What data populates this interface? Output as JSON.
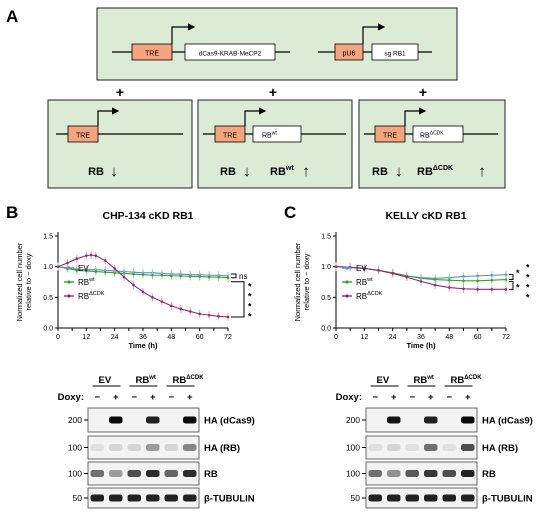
{
  "colors": {
    "panel_bg": "#dcebd6",
    "panel_border": "#222222",
    "tre_box": "#f4a57f",
    "ev": "#5b8fd6",
    "rb_wt": "#3aa032",
    "rb_dcdk": "#8e2d6e",
    "ev_err": "#9ec8ee",
    "rb_wt_err": "#9ad48e",
    "rb_dcdk_err": "#e29ad2"
  },
  "panel_a": {
    "letter": "A",
    "top": {
      "tre": "TRE",
      "dcas": "dCas9-KRAB-MeCP2",
      "pu6": "pU6",
      "sg": "sg RB1"
    },
    "plus": "+",
    "left": {
      "tre": "TRE",
      "rb": "RB",
      "arrow": "↓"
    },
    "middle": {
      "tre": "TRE",
      "insert_base": "RB",
      "insert_sup": "wt",
      "rb": "RB",
      "rb_arrow": "↓",
      "wt_base": "RB",
      "wt_sup": "wt",
      "wt_arrow": "↑"
    },
    "right": {
      "tre": "TRE",
      "insert_base": "RB",
      "insert_sup": "ΔCDK",
      "rb": "RB",
      "rb_arrow": "↓",
      "cdk_base": "RB",
      "cdk_sup": "ΔCDK",
      "cdk_arrow": "↑"
    }
  },
  "panel_b": {
    "letter": "B",
    "chart_data": {
      "type": "line",
      "title": "CHP-134 cKD RB1",
      "xlabel": "Time (h)",
      "ylabel": "Normalized cell number relative to − doxy",
      "xlim": [
        0,
        72
      ],
      "ylim": [
        0,
        1.5
      ],
      "xticks": [
        "0",
        "6",
        "12",
        "18",
        "24",
        "30",
        "36",
        "42",
        "48",
        "54",
        "60",
        "66",
        "72"
      ],
      "yticks": [
        "0.0",
        "0.5",
        "1.0",
        "1.5"
      ],
      "series": [
        {
          "name": "EV",
          "x": [
            0,
            4,
            8,
            12,
            16,
            20,
            24,
            28,
            32,
            36,
            40,
            44,
            48,
            52,
            56,
            60,
            64,
            68,
            72
          ],
          "y": [
            1.0,
            0.98,
            0.96,
            0.95,
            0.95,
            0.94,
            0.93,
            0.92,
            0.91,
            0.9,
            0.9,
            0.89,
            0.88,
            0.88,
            0.87,
            0.87,
            0.86,
            0.86,
            0.85
          ]
        },
        {
          "name_base": "RB",
          "name_sup": "wt",
          "x": [
            0,
            4,
            8,
            12,
            16,
            20,
            24,
            28,
            32,
            36,
            40,
            44,
            48,
            52,
            56,
            60,
            64,
            68,
            72
          ],
          "y": [
            1.0,
            0.97,
            0.94,
            0.93,
            0.92,
            0.91,
            0.9,
            0.89,
            0.88,
            0.87,
            0.86,
            0.86,
            0.85,
            0.85,
            0.84,
            0.84,
            0.83,
            0.83,
            0.82
          ]
        },
        {
          "name_base": "RB",
          "name_sup": "ΔCDK",
          "x": [
            0,
            4,
            8,
            12,
            14,
            16,
            20,
            24,
            28,
            32,
            36,
            40,
            44,
            48,
            52,
            56,
            60,
            64,
            68,
            72
          ],
          "y": [
            1.0,
            1.06,
            1.13,
            1.18,
            1.19,
            1.18,
            1.1,
            0.97,
            0.83,
            0.7,
            0.59,
            0.5,
            0.43,
            0.36,
            0.31,
            0.27,
            0.23,
            0.21,
            0.19,
            0.18
          ]
        }
      ],
      "annotations": {
        "ns": "ns",
        "stars": "****"
      }
    },
    "blot": {
      "doxy": "Doxy:",
      "groups": [
        {
          "base": "EV",
          "sup": ""
        },
        {
          "base": "RB",
          "sup": "wt"
        },
        {
          "base": "RB",
          "sup": "ΔCDK"
        }
      ],
      "lanes": [
        "−",
        "+",
        "−",
        "+",
        "−",
        "+"
      ],
      "rows": [
        {
          "mw": "200",
          "label": "HA (dCas9)"
        },
        {
          "mw": "100",
          "label": "HA (RB)"
        },
        {
          "mw": "100",
          "label": "RB"
        },
        {
          "mw": "50",
          "label": "β-TUBULIN"
        }
      ]
    }
  },
  "panel_c": {
    "letter": "C",
    "chart_data": {
      "type": "line",
      "title": "KELLY cKD RB1",
      "xlabel": "Time (h)",
      "ylabel": "Normalized cell number relative to − doxy",
      "xlim": [
        0,
        72
      ],
      "ylim": [
        0,
        1.5
      ],
      "xticks": [
        "0",
        "6",
        "12",
        "18",
        "24",
        "30",
        "36",
        "42",
        "48",
        "54",
        "60",
        "66",
        "72"
      ],
      "yticks": [
        "0.0",
        "0.5",
        "1.0",
        "1.5"
      ],
      "series": [
        {
          "name": "EV",
          "x": [
            0,
            6,
            12,
            18,
            24,
            30,
            36,
            42,
            48,
            54,
            60,
            66,
            72
          ],
          "y": [
            1.0,
            0.99,
            0.97,
            0.94,
            0.9,
            0.85,
            0.82,
            0.81,
            0.82,
            0.84,
            0.85,
            0.86,
            0.87
          ]
        },
        {
          "name_base": "RB",
          "name_sup": "wt",
          "x": [
            0,
            6,
            12,
            18,
            24,
            30,
            36,
            42,
            48,
            54,
            60,
            66,
            72
          ],
          "y": [
            1.0,
            0.99,
            0.97,
            0.94,
            0.9,
            0.85,
            0.81,
            0.79,
            0.78,
            0.77,
            0.77,
            0.78,
            0.79
          ]
        },
        {
          "name_base": "RB",
          "name_sup": "ΔCDK",
          "x": [
            0,
            6,
            12,
            18,
            24,
            30,
            36,
            42,
            48,
            54,
            60,
            66,
            72
          ],
          "y": [
            1.0,
            0.99,
            0.97,
            0.94,
            0.89,
            0.83,
            0.76,
            0.7,
            0.66,
            0.64,
            0.63,
            0.63,
            0.63
          ]
        }
      ],
      "annotations": {
        "star1": "*",
        "star2": "*",
        "stars": "****"
      }
    },
    "blot": {
      "doxy": "Doxy:",
      "groups": [
        {
          "base": "EV",
          "sup": ""
        },
        {
          "base": "RB",
          "sup": "wt"
        },
        {
          "base": "RB",
          "sup": "ΔCDK"
        }
      ],
      "lanes": [
        "−",
        "+",
        "−",
        "+",
        "−",
        "+"
      ],
      "rows": [
        {
          "mw": "200",
          "label": "HA (dCas9)"
        },
        {
          "mw": "100",
          "label": "HA (RB)"
        },
        {
          "mw": "100",
          "label": "RB"
        },
        {
          "mw": "50",
          "label": "β-TUBULIN"
        }
      ]
    }
  }
}
